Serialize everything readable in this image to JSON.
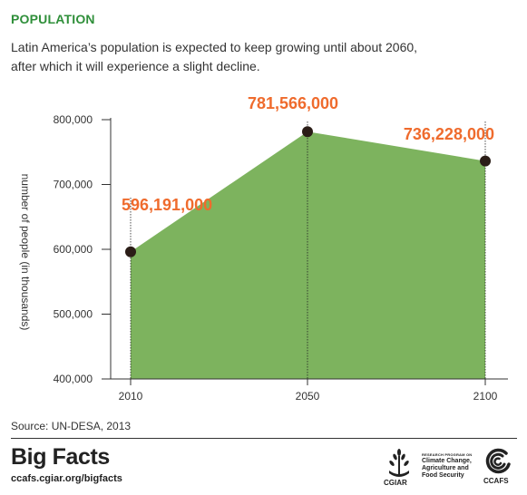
{
  "header": {
    "title": "POPULATION",
    "subtitle_line1": "Latin America’s population is expected to keep growing until about 2060,",
    "subtitle_line2": "after which it will experience a slight decline."
  },
  "chart_data": {
    "type": "area",
    "x": [
      2010,
      2050,
      2100
    ],
    "categories": [
      "2010",
      "2050",
      "2100"
    ],
    "values": [
      596191,
      781566,
      736228
    ],
    "data_labels": [
      "596,191,000",
      "781,566,000",
      "736,228,000"
    ],
    "ylabel": "number of people (in thousands)",
    "ylim": [
      400000,
      800000
    ],
    "yticks": [
      400000,
      500000,
      600000,
      700000,
      800000
    ],
    "ytick_labels": [
      "400,000",
      "500,000",
      "600,000",
      "700,000",
      "800,000"
    ],
    "grid": false,
    "colors": {
      "fill": "#7db35e",
      "point": "#2b1d17",
      "label": "#ef6b2d",
      "axis": "#333333"
    }
  },
  "footer": {
    "source": "Source: UN-DESA, 2013",
    "brand": "Big Facts",
    "url": "ccafs.cgiar.org/bigfacts",
    "cgiar": "CGIAR",
    "program_small": "RESEARCH PROGRAM ON",
    "program_line1": "Climate Change,",
    "program_line2": "Agriculture and",
    "program_line3": "Food Security",
    "ccafs": "CCAFS",
    "icons": [
      "cgiar-wheat-icon",
      "ccafs-swirl-icon"
    ]
  }
}
